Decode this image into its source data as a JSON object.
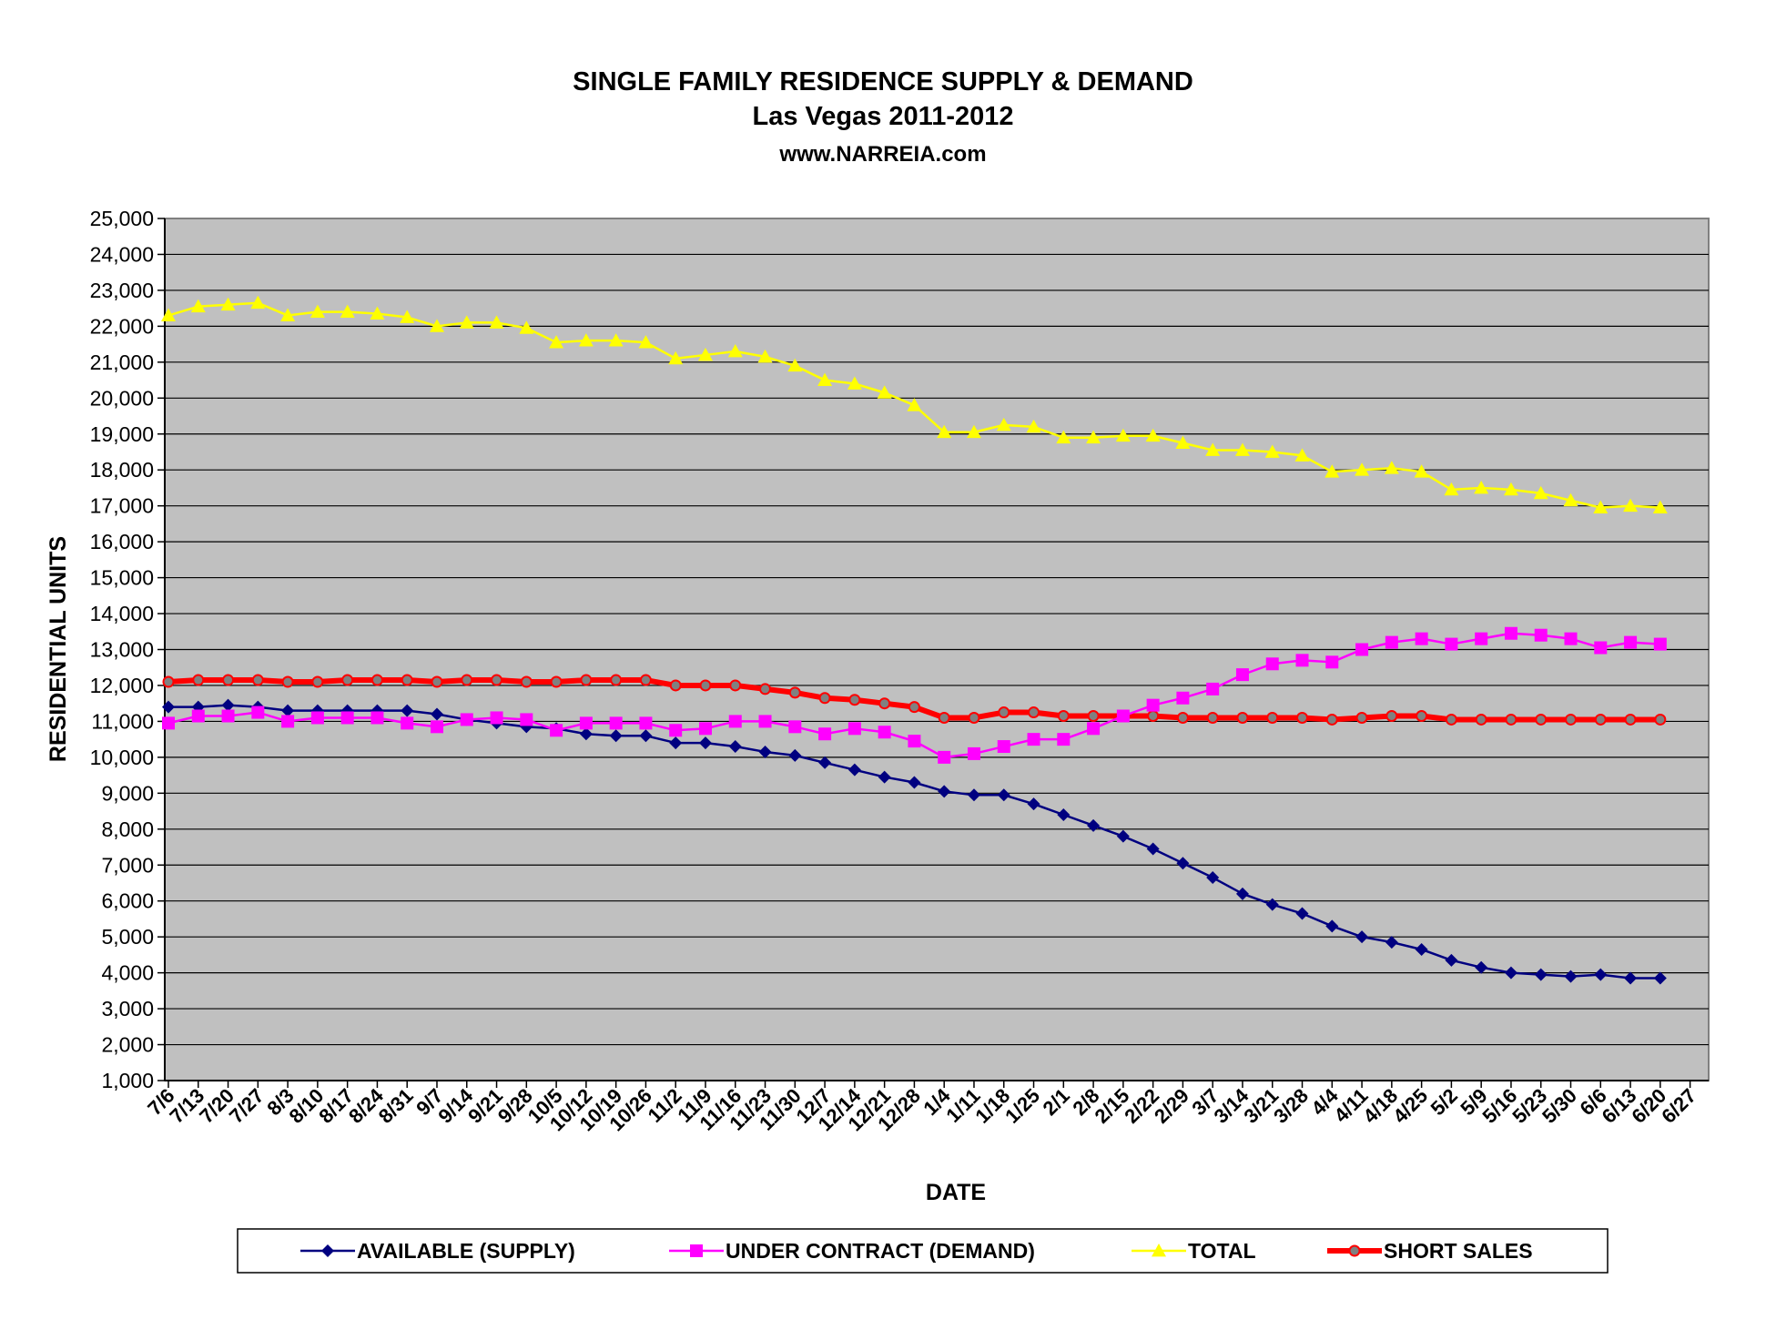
{
  "chart_data": {
    "type": "line",
    "title": "SINGLE FAMILY RESIDENCE SUPPLY & DEMAND",
    "subtitle": "Las Vegas 2011-2012",
    "website": "www.NARREIA.com",
    "xlabel": "DATE",
    "ylabel": "RESIDENTIAL UNITS",
    "ylim": [
      1000,
      25000
    ],
    "ystep": 1000,
    "grid": true,
    "legend_position": "bottom",
    "categories": [
      "7/6",
      "7/13",
      "7/20",
      "7/27",
      "8/3",
      "8/10",
      "8/17",
      "8/24",
      "8/31",
      "9/7",
      "9/14",
      "9/21",
      "9/28",
      "10/5",
      "10/12",
      "10/19",
      "10/26",
      "11/2",
      "11/9",
      "11/16",
      "11/23",
      "11/30",
      "12/7",
      "12/14",
      "12/21",
      "12/28",
      "1/4",
      "1/11",
      "1/18",
      "1/25",
      "2/1",
      "2/8",
      "2/15",
      "2/22",
      "2/29",
      "3/7",
      "3/14",
      "3/21",
      "3/28",
      "4/4",
      "4/11",
      "4/18",
      "4/25",
      "5/2",
      "5/9",
      "5/16",
      "5/23",
      "5/30",
      "6/6",
      "6/13",
      "6/20",
      "6/27"
    ],
    "series": [
      {
        "name": "AVAILABLE (SUPPLY)",
        "color": "#000080",
        "marker": "diamond",
        "values": [
          11400,
          11400,
          11450,
          11400,
          11300,
          11300,
          11300,
          11300,
          11300,
          11200,
          11050,
          10950,
          10850,
          10800,
          10650,
          10600,
          10600,
          10400,
          10400,
          10300,
          10150,
          10050,
          9850,
          9650,
          9450,
          9300,
          9050,
          8950,
          8950,
          8700,
          8400,
          8100,
          7800,
          7450,
          7050,
          6650,
          6200,
          5900,
          5650,
          5300,
          5000,
          4850,
          4650,
          4350,
          4150,
          4000,
          3950,
          3900,
          3950,
          3850,
          3850,
          null
        ]
      },
      {
        "name": "UNDER CONTRACT (DEMAND)",
        "color": "#ff00ff",
        "marker": "square",
        "values": [
          10950,
          11150,
          11150,
          11250,
          11000,
          11100,
          11100,
          11100,
          10950,
          10850,
          11050,
          11100,
          11050,
          10750,
          10950,
          10950,
          10950,
          10750,
          10800,
          11000,
          11000,
          10850,
          10650,
          10800,
          10700,
          10450,
          10000,
          10100,
          10300,
          10500,
          10500,
          10800,
          11150,
          11450,
          11650,
          11900,
          12300,
          12600,
          12700,
          12650,
          13000,
          13200,
          13300,
          13150,
          13300,
          13450,
          13400,
          13300,
          13050,
          13200,
          13150,
          null
        ]
      },
      {
        "name": "TOTAL",
        "color": "#ffff00",
        "marker": "triangle",
        "values": [
          22300,
          22550,
          22600,
          22650,
          22300,
          22400,
          22400,
          22350,
          22250,
          22000,
          22100,
          22100,
          21950,
          21550,
          21600,
          21600,
          21550,
          21100,
          21200,
          21300,
          21150,
          20900,
          20500,
          20400,
          20150,
          19800,
          19050,
          19050,
          19250,
          19200,
          18900,
          18900,
          18950,
          18950,
          18750,
          18550,
          18550,
          18500,
          18400,
          17950,
          18000,
          18050,
          17950,
          17450,
          17500,
          17450,
          17350,
          17150,
          16950,
          17000,
          16950,
          null
        ]
      },
      {
        "name": "SHORT SALES",
        "color": "#ff0000",
        "marker": "circle",
        "values": [
          12100,
          12150,
          12150,
          12150,
          12100,
          12100,
          12150,
          12150,
          12150,
          12100,
          12150,
          12150,
          12100,
          12100,
          12150,
          12150,
          12150,
          12000,
          12000,
          12000,
          11900,
          11800,
          11650,
          11600,
          11500,
          11400,
          11100,
          11100,
          11250,
          11250,
          11150,
          11150,
          11150,
          11150,
          11100,
          11100,
          11100,
          11100,
          11100,
          11050,
          11100,
          11150,
          11150,
          11050,
          11050,
          11050,
          11050,
          11050,
          11050,
          11050,
          11050,
          null
        ]
      }
    ]
  }
}
